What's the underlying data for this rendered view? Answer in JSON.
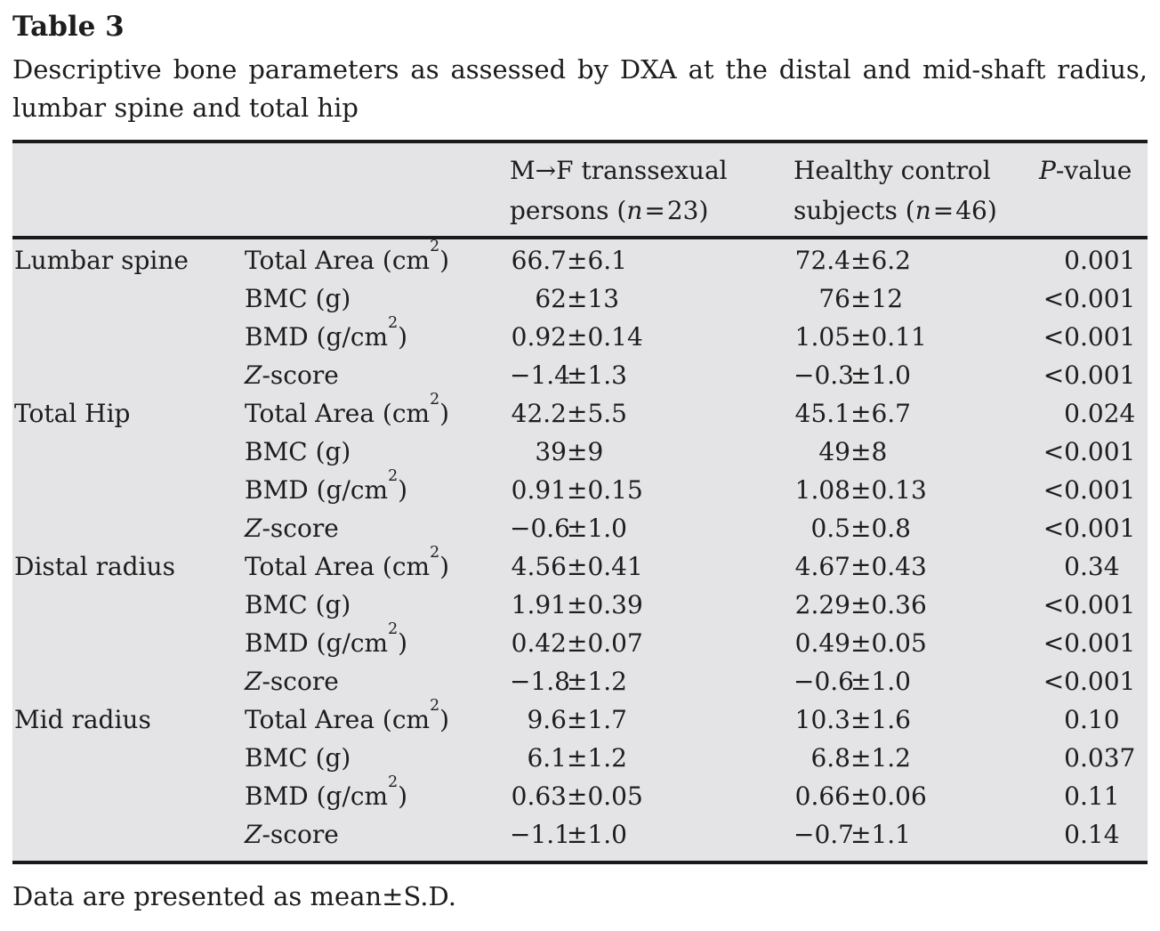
{
  "label": "Table 3",
  "caption": {
    "line1": "Descriptive bone parameters as assessed by DXA at the distal and mid-shaft radius,",
    "line2": "lumbar spine and total hip"
  },
  "table": {
    "headers": {
      "mf_group_lines": [
        "M→F transsexual",
        "persons (n=23)"
      ],
      "control_group_lines": [
        "Healthy control",
        "subjects (n=46)"
      ],
      "pvalue": "P-value"
    },
    "groups": [
      {
        "region": "Lumbar spine",
        "rows": [
          {
            "parameter": "Total Area (cm²)",
            "mf": "66.7±6.1",
            "control": "72.4±6.2",
            "p": "0.001"
          },
          {
            "parameter": "BMC (g)",
            "mf": "62±13",
            "control": "76±12",
            "p": "<0.001"
          },
          {
            "parameter": "BMD (g/cm²)",
            "mf": "0.92±0.14",
            "control": "1.05±0.11",
            "p": "<0.001"
          },
          {
            "parameter": "Z-score",
            "mf": "−1.4±1.3",
            "control": "−0.3±1.0",
            "p": "<0.001"
          }
        ]
      },
      {
        "region": "Total Hip",
        "rows": [
          {
            "parameter": "Total Area (cm²)",
            "mf": "42.2±5.5",
            "control": "45.1±6.7",
            "p": "0.024"
          },
          {
            "parameter": "BMC (g)",
            "mf": "39±9",
            "control": "49±8",
            "p": "<0.001"
          },
          {
            "parameter": "BMD (g/cm²)",
            "mf": "0.91±0.15",
            "control": "1.08±0.13",
            "p": "<0.001"
          },
          {
            "parameter": "Z-score",
            "mf": "−0.6±1.0",
            "control": "0.5±0.8",
            "p": "<0.001"
          }
        ]
      },
      {
        "region": "Distal radius",
        "rows": [
          {
            "parameter": "Total Area (cm²)",
            "mf": "4.56±0.41",
            "control": "4.67±0.43",
            "p": "0.34"
          },
          {
            "parameter": "BMC (g)",
            "mf": "1.91±0.39",
            "control": "2.29±0.36",
            "p": "<0.001"
          },
          {
            "parameter": "BMD (g/cm²)",
            "mf": "0.42±0.07",
            "control": "0.49±0.05",
            "p": "<0.001"
          },
          {
            "parameter": "Z-score",
            "mf": "−1.8±1.2",
            "control": "−0.6±1.0",
            "p": "<0.001"
          }
        ]
      },
      {
        "region": "Mid radius",
        "rows": [
          {
            "parameter": "Total Area (cm²)",
            "mf": "9.6±1.7",
            "control": "10.3±1.6",
            "p": "0.10"
          },
          {
            "parameter": "BMC (g)",
            "mf": "6.1±1.2",
            "control": "6.8±1.2",
            "p": "0.037"
          },
          {
            "parameter": "BMD (g/cm²)",
            "mf": "0.63±0.05",
            "control": "0.66±0.06",
            "p": "0.11"
          },
          {
            "parameter": "Z-score",
            "mf": "−1.1±1.0",
            "control": "−0.7±1.1",
            "p": "0.14"
          }
        ]
      }
    ]
  },
  "footnote": "Data are presented as mean±S.D.",
  "colors": {
    "table_background": "#e4e4e6",
    "rule": "#1a1a1a",
    "text": "#1d1d1d",
    "page_background": "#ffffff"
  }
}
